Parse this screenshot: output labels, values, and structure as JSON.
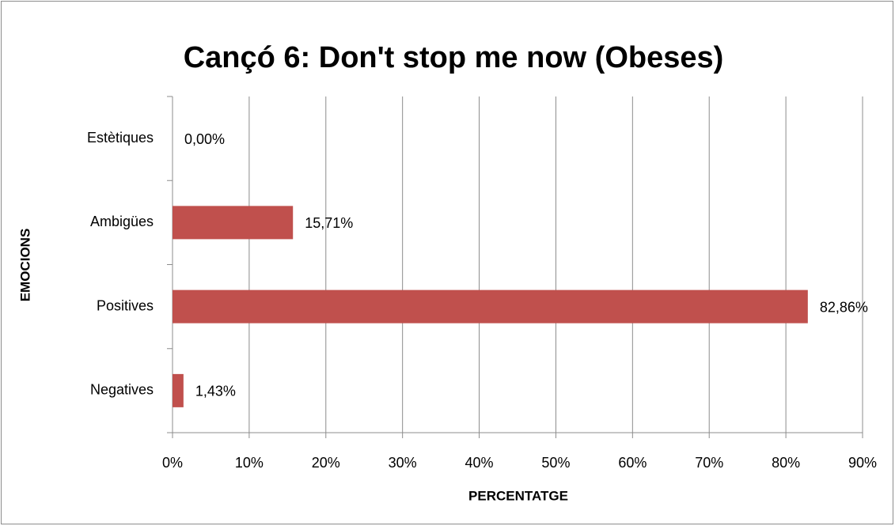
{
  "chart_data": {
    "type": "barh",
    "title": "Cançó 6: Don't stop me now (Obeses)",
    "xlabel": "PERCENTATGE",
    "ylabel": "EMOCIONS",
    "categories": [
      "Estètiques",
      "Ambigües",
      "Positives",
      "Negatives"
    ],
    "values": [
      0.0,
      15.71,
      82.86,
      1.43
    ],
    "value_labels": [
      "0,00%",
      "15,71%",
      "82,86%",
      "1,43%"
    ],
    "color": "#c0504d",
    "xlim": [
      0,
      90
    ],
    "xticks": [
      {
        "value": 0,
        "label": "0%"
      },
      {
        "value": 10,
        "label": "10%"
      },
      {
        "value": 20,
        "label": "20%"
      },
      {
        "value": 30,
        "label": "30%"
      },
      {
        "value": 40,
        "label": "40%"
      },
      {
        "value": 50,
        "label": "50%"
      },
      {
        "value": 60,
        "label": "60%"
      },
      {
        "value": 70,
        "label": "70%"
      },
      {
        "value": 80,
        "label": "80%"
      },
      {
        "value": 90,
        "label": "90%"
      }
    ],
    "grid": true
  }
}
